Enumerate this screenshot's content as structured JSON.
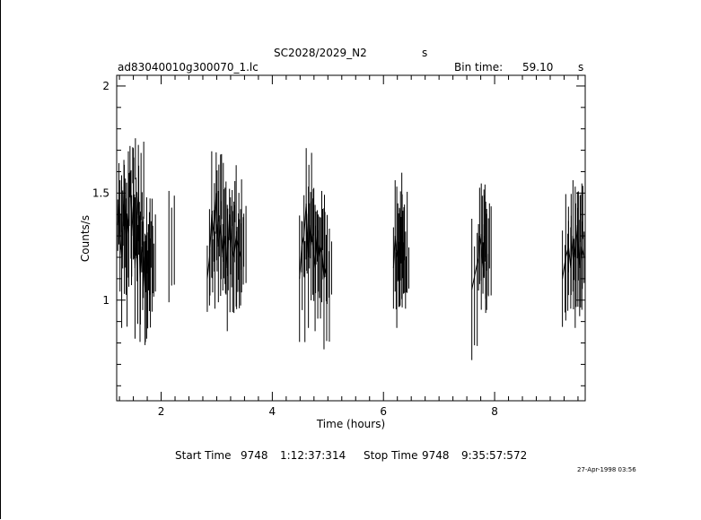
{
  "header": {
    "object": "SC2028/2029_N2",
    "object_unit": "s",
    "file": "ad83040010g300070_1.lc",
    "bin_label": "Bin time:",
    "bin_value": "59.10",
    "bin_unit": "s"
  },
  "footer": {
    "start_label": "Start Time",
    "start_day": "9748",
    "start_time": "1:12:37:314",
    "stop_label": "Stop Time",
    "stop_day": "9748",
    "stop_time": "9:35:57:572",
    "stamp": "27-Apr-1998 03:56"
  },
  "chart_data": {
    "type": "line",
    "title": "SC2028/2029_N2",
    "xlabel": "Time (hours)",
    "ylabel": "Counts/s",
    "xlim": [
      1.2,
      9.63
    ],
    "ylim": [
      0.53,
      2.05
    ],
    "xticks": [
      2,
      4,
      6,
      8
    ],
    "xtick_labels": [
      "2",
      "4",
      "6",
      "8"
    ],
    "yticks": [
      1,
      1.5,
      2
    ],
    "ytick_labels": [
      "1",
      "1.5",
      "2"
    ],
    "series": [
      {
        "style": "error-bar",
        "segments": [
          {
            "x": [
              1.22,
              1.24,
              1.26,
              1.29,
              1.33,
              1.37,
              1.41,
              1.44,
              1.47,
              1.5,
              1.53,
              1.56,
              1.59,
              1.62,
              1.65,
              1.68,
              1.71,
              1.74,
              1.77,
              1.8
            ],
            "y": [
              1.35,
              1.45,
              1.3,
              1.2,
              1.5,
              1.25,
              1.4,
              1.6,
              1.3,
              1.45,
              1.15,
              1.35,
              1.5,
              1.1,
              1.25,
              1.2,
              1.05,
              1.15,
              1.2,
              1.25
            ]
          },
          {
            "x": [
              2.14
            ],
            "y": [
              1.25
            ]
          },
          {
            "x": [
              2.83,
              2.87,
              2.91,
              2.95,
              2.99,
              3.03,
              3.07,
              3.11,
              3.15,
              3.19,
              3.23,
              3.27,
              3.31,
              3.35,
              3.39,
              3.43
            ],
            "y": [
              1.1,
              1.2,
              1.4,
              1.3,
              1.5,
              1.25,
              1.35,
              1.2,
              1.3,
              1.15,
              1.4,
              1.25,
              1.2,
              1.3,
              1.25,
              1.2
            ]
          },
          {
            "x": [
              4.49,
              4.53,
              4.57,
              4.61,
              4.65,
              4.69,
              4.73,
              4.77,
              4.81,
              4.85,
              4.89,
              4.93,
              4.97
            ],
            "y": [
              1.1,
              1.25,
              1.3,
              1.45,
              1.2,
              1.35,
              1.25,
              1.15,
              1.3,
              1.2,
              1.25,
              1.1,
              1.15
            ]
          },
          {
            "x": [
              6.18,
              6.21,
              6.24,
              6.27,
              6.3,
              6.33,
              6.36
            ],
            "y": [
              1.15,
              1.3,
              1.2,
              1.25,
              1.2,
              1.3,
              1.15
            ]
          },
          {
            "x": [
              7.59,
              7.71,
              7.73,
              7.76,
              7.79,
              7.81,
              7.84
            ],
            "y": [
              1.05,
              1.2,
              1.3,
              1.25,
              1.15,
              1.3,
              1.2
            ]
          },
          {
            "x": [
              9.22,
              9.28,
              9.33,
              9.37,
              9.41,
              9.45,
              9.49,
              9.53,
              9.57,
              9.61
            ],
            "y": [
              1.1,
              1.2,
              1.25,
              1.15,
              1.3,
              1.2,
              1.35,
              1.15,
              1.25,
              1.2
            ]
          }
        ]
      }
    ],
    "grid": false
  }
}
